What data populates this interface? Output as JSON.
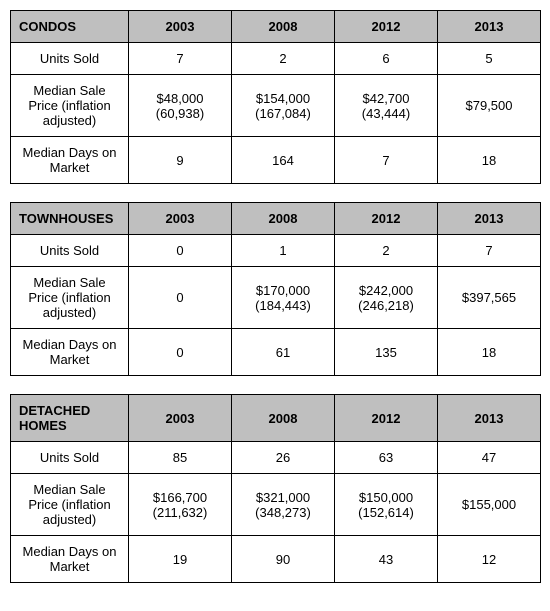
{
  "columns": [
    "2003",
    "2008",
    "2012",
    "2013"
  ],
  "rowLabels": {
    "units": "Units Sold",
    "price": "Median Sale Price (inflation adjusted)",
    "days": "Median Days on Market"
  },
  "table_style": {
    "header_bg": "#bfbfbf",
    "border_color": "#000000",
    "font_family": "Arial",
    "font_size_pt": 10
  },
  "tables": [
    {
      "title": "CONDOS",
      "units": [
        "7",
        "2",
        "6",
        "5"
      ],
      "price": [
        {
          "main": "$48,000",
          "sub": "(60,938)"
        },
        {
          "main": "$154,000",
          "sub": "(167,084)"
        },
        {
          "main": "$42,700",
          "sub": "(43,444)"
        },
        {
          "main": "$79,500",
          "sub": ""
        }
      ],
      "days": [
        "9",
        "164",
        "7",
        "18"
      ]
    },
    {
      "title": "TOWNHOUSES",
      "units": [
        "0",
        "1",
        "2",
        "7"
      ],
      "price": [
        {
          "main": "0",
          "sub": ""
        },
        {
          "main": "$170,000",
          "sub": "(184,443)"
        },
        {
          "main": "$242,000",
          "sub": "(246,218)"
        },
        {
          "main": "$397,565",
          "sub": ""
        }
      ],
      "days": [
        "0",
        "61",
        "135",
        "18"
      ]
    },
    {
      "title": "DETACHED HOMES",
      "units": [
        "85",
        "26",
        "63",
        "47"
      ],
      "price": [
        {
          "main": "$166,700",
          "sub": "(211,632)"
        },
        {
          "main": "$321,000",
          "sub": "(348,273)"
        },
        {
          "main": "$150,000",
          "sub": "(152,614)"
        },
        {
          "main": "$155,000",
          "sub": ""
        }
      ],
      "days": [
        "19",
        "90",
        "43",
        "12"
      ]
    }
  ]
}
